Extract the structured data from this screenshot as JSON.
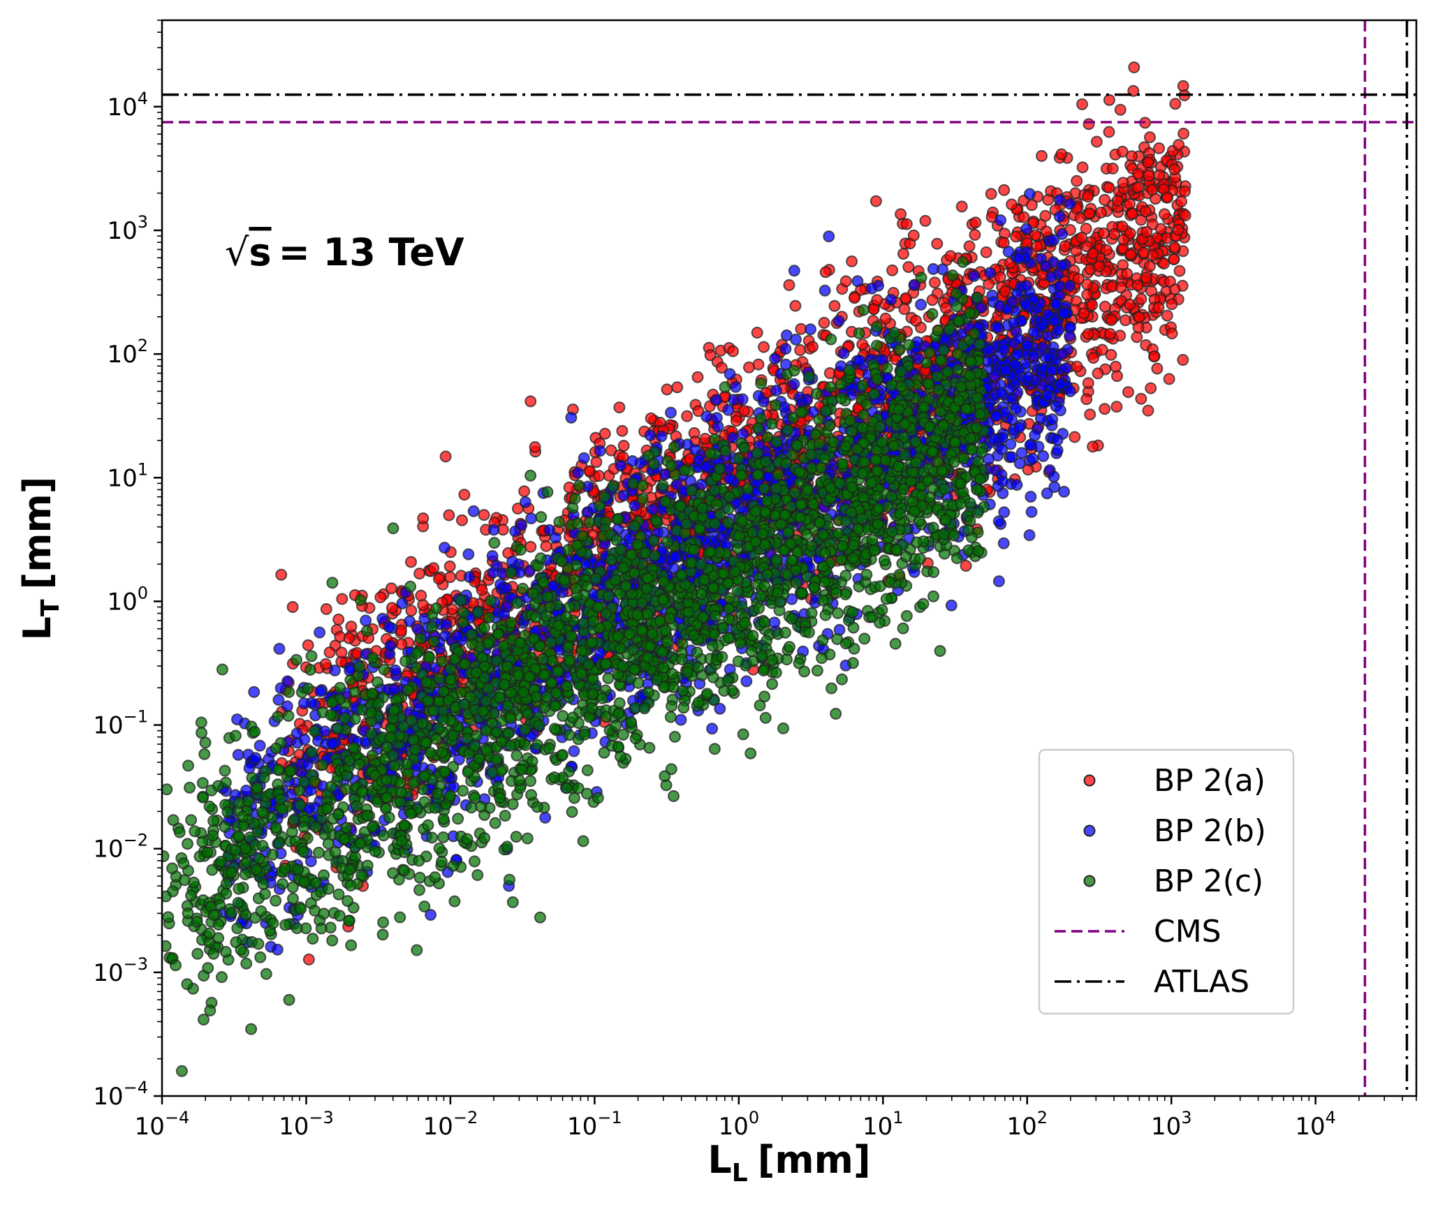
{
  "chart_data": {
    "type": "scatter",
    "title": "",
    "xlabel": "L",
    "xlabel_sub": "L",
    "xlabel_unit": "[mm]",
    "ylabel": "L",
    "ylabel_sub": "T",
    "ylabel_unit": "[mm]",
    "xscale": "log",
    "yscale": "log",
    "xlim": [
      0.0001,
      50000
    ],
    "ylim": [
      0.0001,
      50000
    ],
    "x_ticks": [
      {
        "base": "10",
        "exp": "−4",
        "value": 0.0001
      },
      {
        "base": "10",
        "exp": "−3",
        "value": 0.001
      },
      {
        "base": "10",
        "exp": "−2",
        "value": 0.01
      },
      {
        "base": "10",
        "exp": "−1",
        "value": 0.1
      },
      {
        "base": "10",
        "exp": "0",
        "value": 1
      },
      {
        "base": "10",
        "exp": "1",
        "value": 10
      },
      {
        "base": "10",
        "exp": "2",
        "value": 100
      },
      {
        "base": "10",
        "exp": "3",
        "value": 1000
      },
      {
        "base": "10",
        "exp": "4",
        "value": 10000
      }
    ],
    "y_ticks": [
      {
        "base": "10",
        "exp": "−4",
        "value": 0.0001
      },
      {
        "base": "10",
        "exp": "−3",
        "value": 0.001
      },
      {
        "base": "10",
        "exp": "−2",
        "value": 0.01
      },
      {
        "base": "10",
        "exp": "−1",
        "value": 0.1
      },
      {
        "base": "10",
        "exp": "0",
        "value": 1
      },
      {
        "base": "10",
        "exp": "1",
        "value": 10
      },
      {
        "base": "10",
        "exp": "2",
        "value": 100
      },
      {
        "base": "10",
        "exp": "3",
        "value": 1000
      },
      {
        "base": "10",
        "exp": "4",
        "value": 10000
      }
    ],
    "annotation": {
      "prefix": "√",
      "s": "s",
      "text": "= 13 TeV"
    },
    "series": [
      {
        "name": "BP 2(a)",
        "color": "#ff0000",
        "cloud": {
          "x_log_range": [
            -3.2,
            3.1
          ],
          "slope": 0.68,
          "intercept_log": 0.95,
          "spread_log": 0.95,
          "count": 2200
        }
      },
      {
        "name": "BP 2(b)",
        "color": "#0000ff",
        "cloud": {
          "x_log_range": [
            -3.6,
            2.3
          ],
          "slope": 0.68,
          "intercept_log": 0.55,
          "spread_log": 0.95,
          "count": 2200
        }
      },
      {
        "name": "BP 2(c)",
        "color": "#007000",
        "cloud": {
          "x_log_range": [
            -4.0,
            1.7
          ],
          "slope": 0.68,
          "intercept_log": 0.25,
          "spread_log": 1.0,
          "count": 2600
        }
      }
    ],
    "reference_lines": [
      {
        "name": "CMS",
        "color": "#800080",
        "style": "dashed",
        "x": 22000,
        "y": 7500
      },
      {
        "name": "ATLAS",
        "color": "#000000",
        "style": "dashdot",
        "x": 43000,
        "y": 12500
      }
    ],
    "legend_position": "lower-right",
    "grid": false
  }
}
